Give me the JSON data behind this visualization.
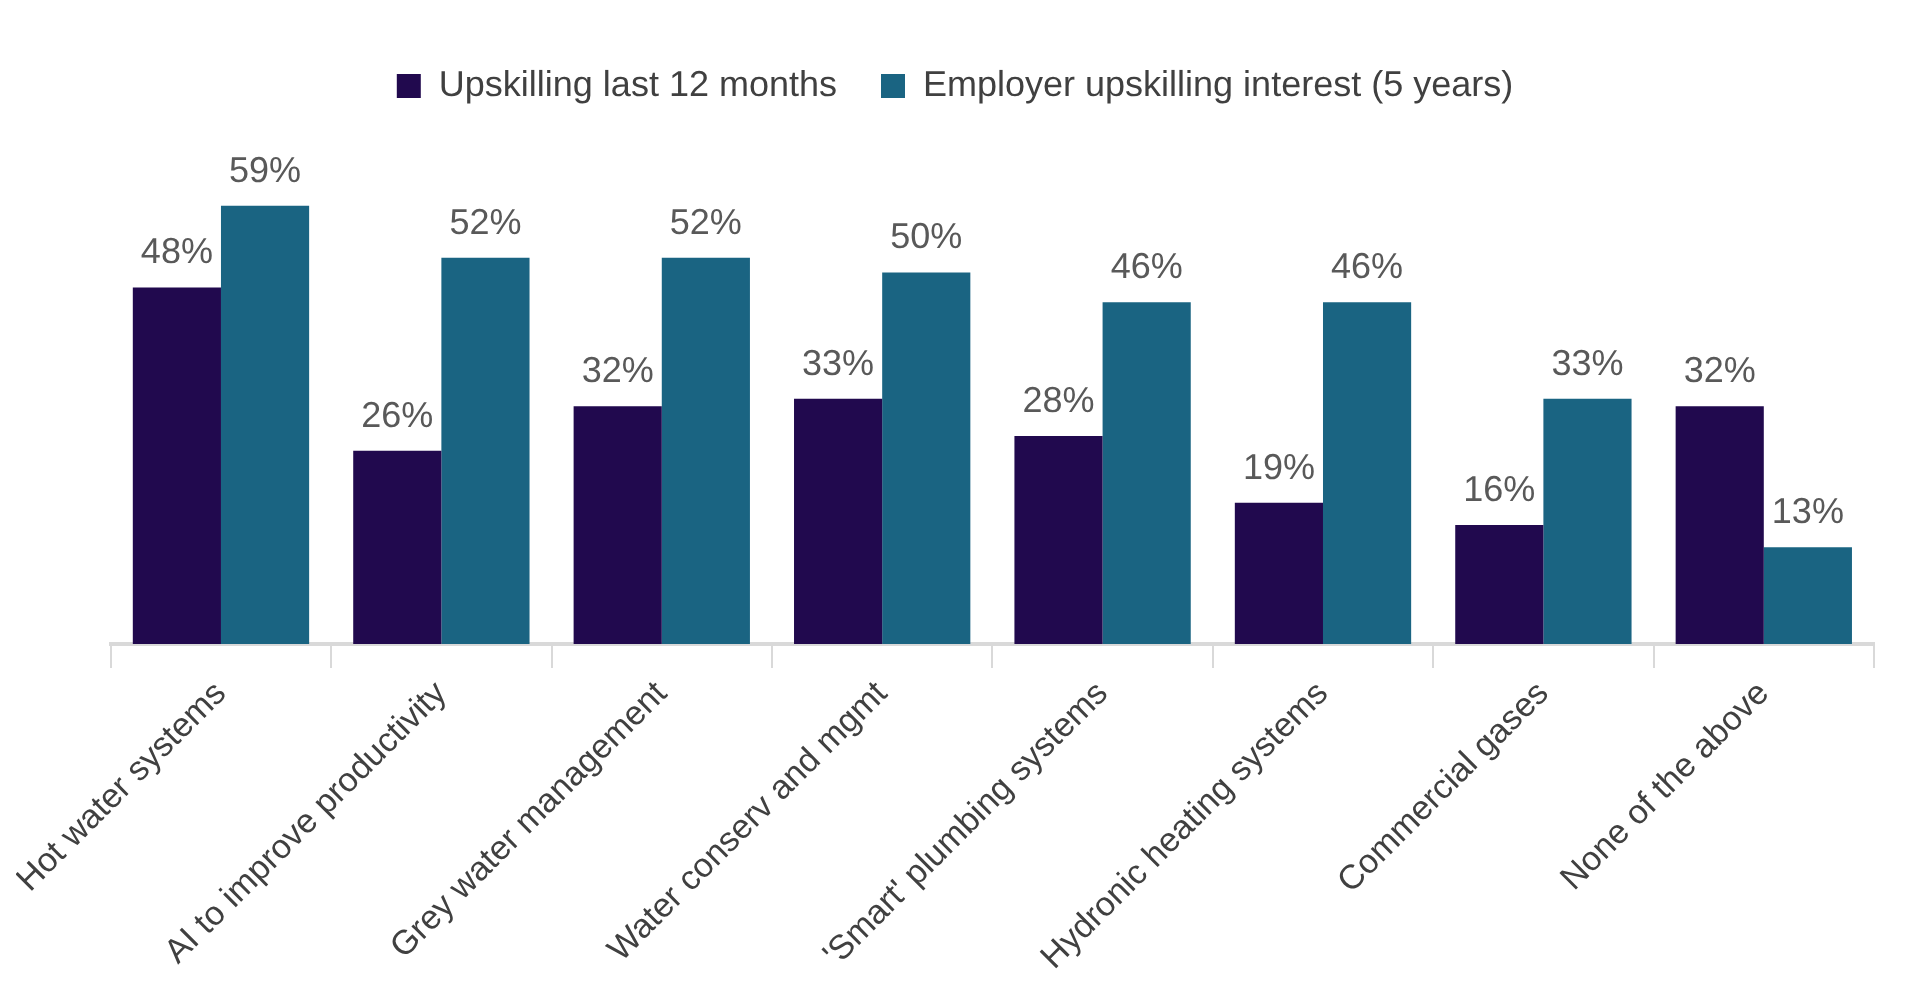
{
  "chart_data": {
    "type": "bar",
    "categories": [
      "Hot water systems",
      "AI to improve productivity",
      "Grey water management",
      "Water conserv and mgmt",
      "'Smart' plumbing systems",
      "Hydronic heating systems",
      "Commercial gases",
      "None of the above"
    ],
    "series": [
      {
        "name": "Upskilling last 12 months",
        "color": "#21094e",
        "values": [
          48,
          26,
          32,
          33,
          28,
          19,
          16,
          32
        ],
        "value_labels": [
          "48%",
          "26%",
          "32%",
          "33%",
          "28%",
          "19%",
          "16%",
          "32%"
        ]
      },
      {
        "name": "Employer upskilling interest (5 years)",
        "color": "#1a6482",
        "values": [
          59,
          52,
          52,
          50,
          46,
          46,
          33,
          13
        ],
        "value_labels": [
          "59%",
          "52%",
          "52%",
          "50%",
          "46%",
          "46%",
          "33%",
          "13%"
        ]
      }
    ],
    "legend": "top",
    "grid": false
  }
}
